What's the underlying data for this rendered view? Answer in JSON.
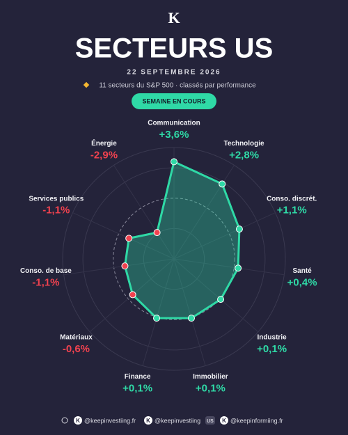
{
  "logo": "K",
  "chart_data": {
    "type": "radar",
    "title": "SECTEURS US",
    "date": "22 SEPTEMBRE 2026",
    "subtitle": "11 secteurs du S&P 500 · classés par performance",
    "badge": "SEMAINE EN COURS",
    "categories": [
      "Communication",
      "Technologie",
      "Conso. discrét.",
      "Santé",
      "Industrie",
      "Immobilier",
      "Finance",
      "Matériaux",
      "Conso. de base",
      "Services publics",
      "Énergie"
    ],
    "values": [
      3.6,
      2.8,
      1.1,
      0.4,
      0.1,
      0.1,
      0.1,
      -0.6,
      -1.1,
      -1.1,
      -2.9
    ],
    "value_labels": [
      "+3,6%",
      "+2,8%",
      "+1,1%",
      "+0,4%",
      "+0,1%",
      "+0,1%",
      "+0,1%",
      "-0,6%",
      "-1,1%",
      "-1,1%",
      "-2,9%"
    ],
    "positive_color": "#2fd9a6",
    "negative_color": "#f0424f",
    "rlim": [
      -6,
      5
    ],
    "rticks": [
      -3,
      0,
      3
    ],
    "grid": true
  },
  "footer": {
    "handles": [
      "@keepinvestiing.fr",
      "@keepinvestiing",
      "@keepinformiing.fr"
    ],
    "tag": "US"
  }
}
